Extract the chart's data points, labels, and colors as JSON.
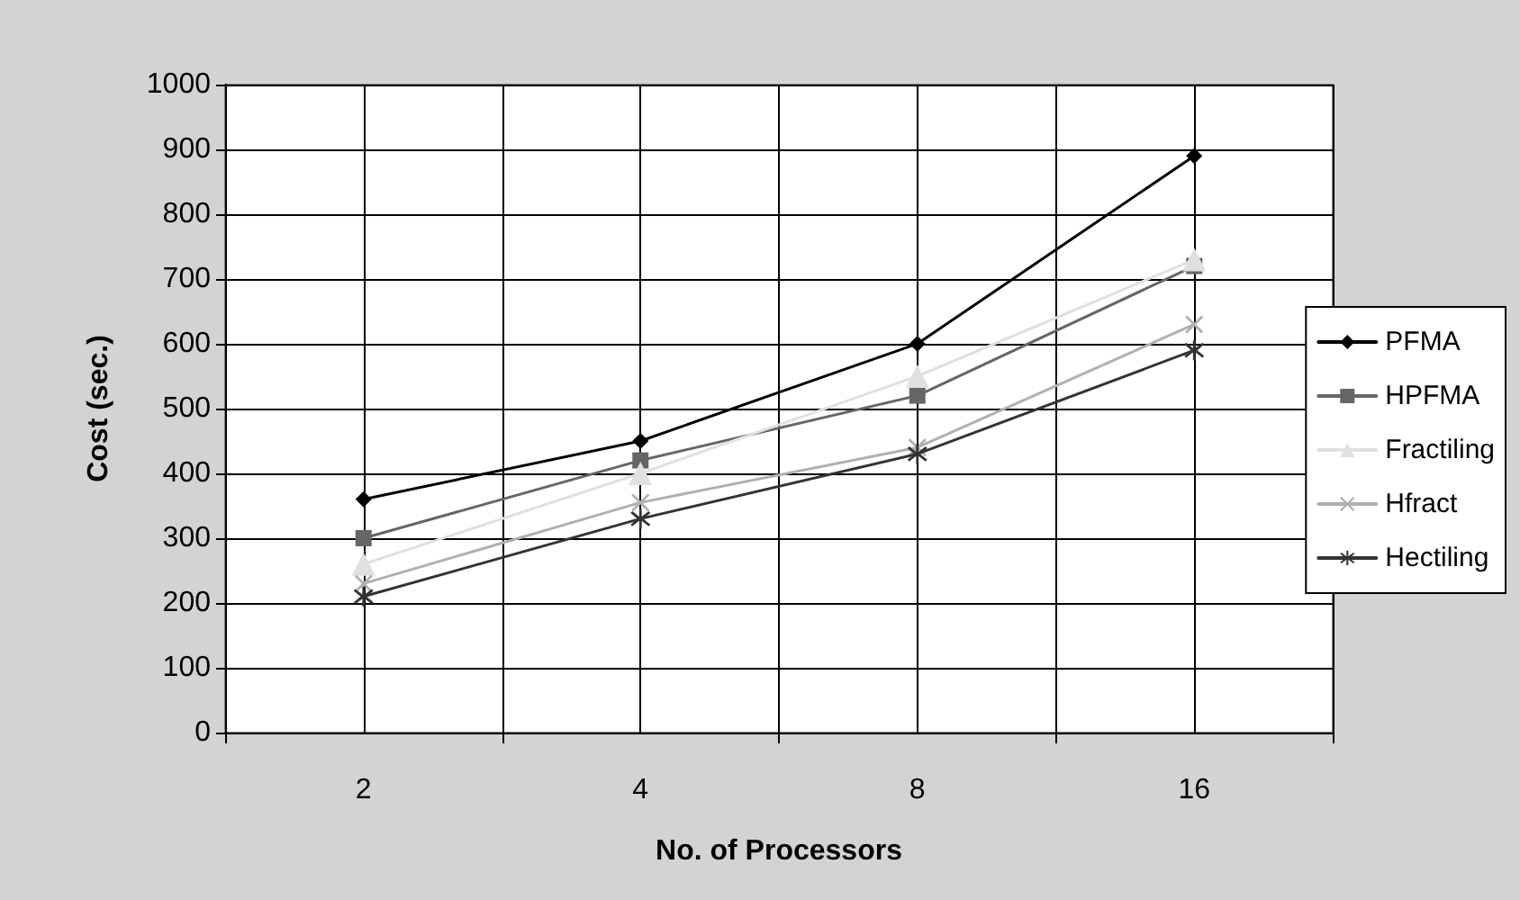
{
  "chart_data": {
    "type": "line",
    "xlabel": "No. of Processors",
    "ylabel": "Cost (sec.)",
    "categories": [
      "2",
      "4",
      "8",
      "16"
    ],
    "series": [
      {
        "name": "PFMA",
        "color": "#000000",
        "marker": "diamond",
        "values": [
          360,
          450,
          600,
          890
        ]
      },
      {
        "name": "HPFMA",
        "color": "#666666",
        "marker": "square",
        "values": [
          300,
          420,
          520,
          720
        ]
      },
      {
        "name": "Fractiling",
        "color": "#e0e0e0",
        "marker": "triangle",
        "values": [
          260,
          400,
          550,
          730
        ]
      },
      {
        "name": "Hfract",
        "color": "#b0b0b0",
        "marker": "cross",
        "values": [
          230,
          355,
          440,
          630
        ]
      },
      {
        "name": "Hectiling",
        "color": "#333333",
        "marker": "star",
        "values": [
          210,
          330,
          430,
          590
        ]
      }
    ],
    "ylim": [
      0,
      1000
    ],
    "yticks": [
      0,
      100,
      200,
      300,
      400,
      500,
      600,
      700,
      800,
      900,
      1000
    ],
    "grid": true,
    "legend": "right",
    "line_style": "solid"
  }
}
